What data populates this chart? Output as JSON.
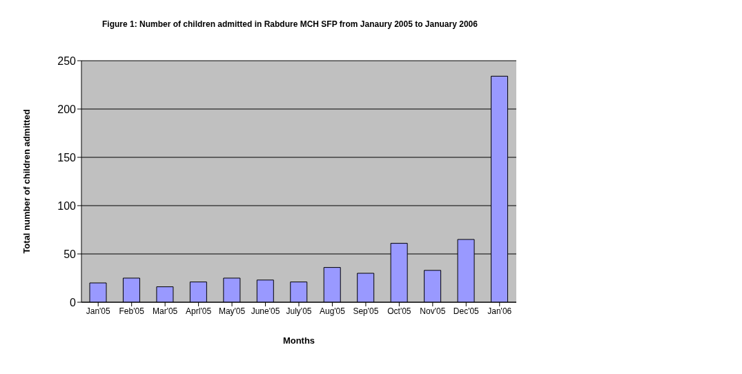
{
  "chart_data": {
    "type": "bar",
    "title": "Figure 1: Number of children admitted in Rabdure MCH SFP from Janaury 2005 to January 2006",
    "xlabel": "Months",
    "ylabel": "Total number of children admitted",
    "categories": [
      "Jan'05",
      "Feb'05",
      "Mar'05",
      "Aprl'05",
      "May'05",
      "June'05",
      "July'05",
      "Aug'05",
      "Sep'05",
      "Oct'05",
      "Nov'05",
      "Dec'05",
      "Jan'06"
    ],
    "values": [
      20,
      25,
      16,
      21,
      25,
      23,
      21,
      36,
      30,
      61,
      33,
      65,
      234
    ],
    "color": "#9999ff",
    "ylim": [
      0,
      250
    ],
    "yticks": [
      0,
      50,
      100,
      150,
      200,
      250
    ],
    "grid": "y"
  }
}
